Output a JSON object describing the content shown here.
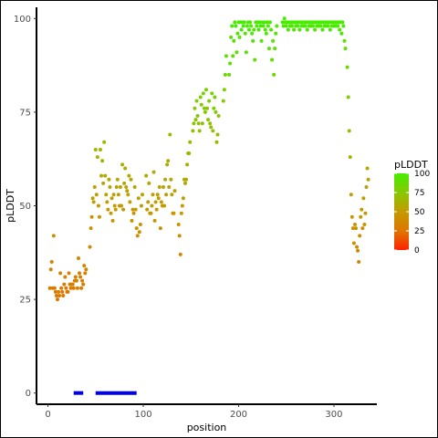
{
  "chart_data": {
    "type": "scatter",
    "xlabel": "position",
    "ylabel": "pLDDT",
    "xlim": [
      -12,
      345
    ],
    "ylim": [
      -3,
      103
    ],
    "x_ticks": [
      0,
      100,
      200,
      300
    ],
    "y_ticks": [
      0,
      25,
      50,
      75,
      100
    ],
    "grid": false,
    "legend": {
      "title": "pLDDT",
      "position": "right",
      "ticks": [
        0,
        25,
        50,
        75,
        100
      ],
      "colors": [
        "#ff2200",
        "#dd7700",
        "#c49a00",
        "#88c800",
        "#44ee00"
      ]
    },
    "segments_y": 0,
    "segments": [
      [
        27,
        37
      ],
      [
        50,
        93
      ]
    ],
    "segment_color": "#0000ee",
    "points": [
      [
        2,
        28
      ],
      [
        3,
        33
      ],
      [
        4,
        35
      ],
      [
        5,
        28
      ],
      [
        6,
        42
      ],
      [
        7,
        28
      ],
      [
        8,
        27
      ],
      [
        9,
        26
      ],
      [
        10,
        25
      ],
      [
        11,
        27
      ],
      [
        12,
        26
      ],
      [
        13,
        32
      ],
      [
        14,
        28
      ],
      [
        15,
        27
      ],
      [
        16,
        26
      ],
      [
        17,
        29
      ],
      [
        18,
        31
      ],
      [
        19,
        28
      ],
      [
        20,
        27
      ],
      [
        21,
        27
      ],
      [
        22,
        32
      ],
      [
        23,
        29
      ],
      [
        24,
        28
      ],
      [
        25,
        29
      ],
      [
        26,
        29
      ],
      [
        27,
        28
      ],
      [
        28,
        30
      ],
      [
        29,
        31
      ],
      [
        30,
        30
      ],
      [
        31,
        28
      ],
      [
        32,
        36
      ],
      [
        33,
        32
      ],
      [
        34,
        31
      ],
      [
        35,
        28
      ],
      [
        36,
        30
      ],
      [
        37,
        29
      ],
      [
        38,
        34
      ],
      [
        39,
        32
      ],
      [
        40,
        33
      ],
      [
        44,
        39
      ],
      [
        45,
        44
      ],
      [
        46,
        47
      ],
      [
        47,
        52
      ],
      [
        48,
        51
      ],
      [
        49,
        55
      ],
      [
        50,
        65
      ],
      [
        51,
        53
      ],
      [
        52,
        63
      ],
      [
        53,
        50
      ],
      [
        54,
        47
      ],
      [
        55,
        65
      ],
      [
        56,
        58
      ],
      [
        57,
        62
      ],
      [
        58,
        56
      ],
      [
        59,
        67
      ],
      [
        60,
        58
      ],
      [
        61,
        53
      ],
      [
        62,
        51
      ],
      [
        63,
        49
      ],
      [
        64,
        57
      ],
      [
        65,
        55
      ],
      [
        66,
        48
      ],
      [
        67,
        52
      ],
      [
        68,
        46
      ],
      [
        69,
        53
      ],
      [
        70,
        50
      ],
      [
        71,
        49
      ],
      [
        72,
        55
      ],
      [
        73,
        57
      ],
      [
        74,
        53
      ],
      [
        75,
        50
      ],
      [
        76,
        55
      ],
      [
        77,
        50
      ],
      [
        78,
        61
      ],
      [
        79,
        49
      ],
      [
        80,
        56
      ],
      [
        81,
        60
      ],
      [
        82,
        55
      ],
      [
        83,
        54
      ],
      [
        84,
        53
      ],
      [
        85,
        58
      ],
      [
        86,
        51
      ],
      [
        87,
        57
      ],
      [
        88,
        46
      ],
      [
        89,
        49
      ],
      [
        90,
        48
      ],
      [
        91,
        55
      ],
      [
        92,
        49
      ],
      [
        93,
        44
      ],
      [
        94,
        42
      ],
      [
        95,
        52
      ],
      [
        96,
        43
      ],
      [
        97,
        45
      ],
      [
        98,
        50
      ],
      [
        99,
        53
      ],
      [
        103,
        58
      ],
      [
        104,
        49
      ],
      [
        105,
        51
      ],
      [
        106,
        56
      ],
      [
        107,
        48
      ],
      [
        108,
        48
      ],
      [
        109,
        50
      ],
      [
        110,
        53
      ],
      [
        111,
        59
      ],
      [
        112,
        46
      ],
      [
        113,
        51
      ],
      [
        114,
        49
      ],
      [
        115,
        53
      ],
      [
        116,
        52
      ],
      [
        117,
        55
      ],
      [
        118,
        44
      ],
      [
        119,
        51
      ],
      [
        120,
        50
      ],
      [
        121,
        55
      ],
      [
        122,
        50
      ],
      [
        123,
        57
      ],
      [
        124,
        53
      ],
      [
        125,
        61
      ],
      [
        126,
        62
      ],
      [
        127,
        55
      ],
      [
        128,
        69
      ],
      [
        129,
        57
      ],
      [
        130,
        53
      ],
      [
        131,
        48
      ],
      [
        132,
        48
      ],
      [
        133,
        54
      ],
      [
        137,
        45
      ],
      [
        138,
        42
      ],
      [
        139,
        37
      ],
      [
        140,
        48
      ],
      [
        141,
        50
      ],
      [
        142,
        52
      ],
      [
        143,
        57
      ],
      [
        144,
        56
      ],
      [
        145,
        57
      ],
      [
        146,
        61
      ],
      [
        147,
        64
      ],
      [
        148,
        64
      ],
      [
        149,
        67
      ],
      [
        152,
        70
      ],
      [
        153,
        72
      ],
      [
        154,
        76
      ],
      [
        155,
        73
      ],
      [
        156,
        78
      ],
      [
        157,
        74
      ],
      [
        158,
        72
      ],
      [
        159,
        70
      ],
      [
        160,
        79
      ],
      [
        161,
        77
      ],
      [
        162,
        72
      ],
      [
        163,
        80
      ],
      [
        164,
        76
      ],
      [
        165,
        75
      ],
      [
        166,
        81
      ],
      [
        167,
        76
      ],
      [
        168,
        73
      ],
      [
        169,
        78
      ],
      [
        170,
        72
      ],
      [
        171,
        71
      ],
      [
        172,
        80
      ],
      [
        173,
        70
      ],
      [
        174,
        76
      ],
      [
        175,
        79
      ],
      [
        176,
        75
      ],
      [
        177,
        67
      ],
      [
        178,
        69
      ],
      [
        179,
        74
      ],
      [
        184,
        78
      ],
      [
        185,
        81
      ],
      [
        186,
        85
      ],
      [
        187,
        90
      ],
      [
        190,
        85
      ],
      [
        191,
        88
      ],
      [
        192,
        95
      ],
      [
        193,
        98
      ],
      [
        194,
        90
      ],
      [
        195,
        94
      ],
      [
        196,
        99
      ],
      [
        197,
        98
      ],
      [
        198,
        91
      ],
      [
        199,
        96
      ],
      [
        200,
        99
      ],
      [
        201,
        95
      ],
      [
        202,
        99
      ],
      [
        203,
        97
      ],
      [
        204,
        99
      ],
      [
        205,
        98
      ],
      [
        206,
        99
      ],
      [
        207,
        96
      ],
      [
        208,
        91
      ],
      [
        209,
        98
      ],
      [
        210,
        99
      ],
      [
        211,
        97
      ],
      [
        212,
        99
      ],
      [
        213,
        98
      ],
      [
        214,
        96
      ],
      [
        215,
        94
      ],
      [
        216,
        97
      ],
      [
        217,
        89
      ],
      [
        218,
        99
      ],
      [
        219,
        98
      ],
      [
        220,
        99
      ],
      [
        221,
        97
      ],
      [
        222,
        99
      ],
      [
        223,
        98
      ],
      [
        224,
        94
      ],
      [
        225,
        99
      ],
      [
        226,
        98
      ],
      [
        227,
        99
      ],
      [
        228,
        97
      ],
      [
        229,
        96
      ],
      [
        230,
        99
      ],
      [
        231,
        98
      ],
      [
        232,
        92
      ],
      [
        233,
        99
      ],
      [
        234,
        97
      ],
      [
        235,
        89
      ],
      [
        236,
        94
      ],
      [
        237,
        85
      ],
      [
        238,
        92
      ],
      [
        239,
        96
      ],
      [
        240,
        98
      ],
      [
        246,
        99
      ],
      [
        247,
        98
      ],
      [
        248,
        100
      ],
      [
        249,
        99
      ],
      [
        250,
        98
      ],
      [
        251,
        99
      ],
      [
        252,
        97
      ],
      [
        253,
        99
      ],
      [
        254,
        98
      ],
      [
        255,
        99
      ],
      [
        256,
        98
      ],
      [
        257,
        99
      ],
      [
        258,
        97
      ],
      [
        259,
        99
      ],
      [
        260,
        98
      ],
      [
        261,
        99
      ],
      [
        262,
        98
      ],
      [
        263,
        99
      ],
      [
        264,
        97
      ],
      [
        265,
        99
      ],
      [
        266,
        98
      ],
      [
        267,
        99
      ],
      [
        268,
        98
      ],
      [
        269,
        99
      ],
      [
        270,
        98
      ],
      [
        271,
        99
      ],
      [
        272,
        97
      ],
      [
        273,
        99
      ],
      [
        274,
        98
      ],
      [
        275,
        99
      ],
      [
        276,
        98
      ],
      [
        277,
        99
      ],
      [
        278,
        98
      ],
      [
        279,
        99
      ],
      [
        280,
        97
      ],
      [
        281,
        99
      ],
      [
        282,
        98
      ],
      [
        283,
        99
      ],
      [
        284,
        98
      ],
      [
        285,
        99
      ],
      [
        286,
        98
      ],
      [
        287,
        99
      ],
      [
        288,
        97
      ],
      [
        289,
        99
      ],
      [
        290,
        98
      ],
      [
        291,
        99
      ],
      [
        292,
        98
      ],
      [
        293,
        99
      ],
      [
        294,
        98
      ],
      [
        295,
        99
      ],
      [
        296,
        97
      ],
      [
        297,
        99
      ],
      [
        298,
        98
      ],
      [
        299,
        99
      ],
      [
        300,
        98
      ],
      [
        301,
        99
      ],
      [
        302,
        98
      ],
      [
        303,
        99
      ],
      [
        304,
        98
      ],
      [
        305,
        99
      ],
      [
        306,
        97
      ],
      [
        307,
        99
      ],
      [
        308,
        96
      ],
      [
        309,
        99
      ],
      [
        310,
        98
      ],
      [
        311,
        94
      ],
      [
        312,
        92
      ],
      [
        314,
        87
      ],
      [
        315,
        79
      ],
      [
        316,
        70
      ],
      [
        317,
        63
      ],
      [
        318,
        53
      ],
      [
        319,
        47
      ],
      [
        320,
        44
      ],
      [
        321,
        40
      ],
      [
        322,
        45
      ],
      [
        323,
        44
      ],
      [
        324,
        39
      ],
      [
        325,
        38
      ],
      [
        326,
        35
      ],
      [
        327,
        42
      ],
      [
        328,
        47
      ],
      [
        329,
        49
      ],
      [
        330,
        44
      ],
      [
        331,
        52
      ],
      [
        332,
        45
      ],
      [
        333,
        48
      ],
      [
        334,
        55
      ],
      [
        335,
        60
      ],
      [
        336,
        57
      ]
    ]
  }
}
